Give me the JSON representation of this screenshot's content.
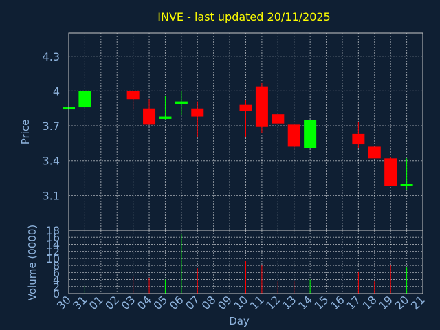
{
  "chart_data": {
    "type": "candlestick",
    "title": "INVE - last updated 20/11/2025",
    "xlabel": "Day",
    "ylabel_price": "Price",
    "ylabel_volume": "Volume (0000)",
    "x_ticks": [
      "30",
      "31",
      "01",
      "02",
      "03",
      "04",
      "05",
      "06",
      "07",
      "08",
      "09",
      "10",
      "11",
      "12",
      "13",
      "14",
      "15",
      "16",
      "17",
      "18",
      "19",
      "20",
      "21"
    ],
    "price_ticks": [
      "3.1",
      "3.4",
      "3.7",
      "4",
      "4.3"
    ],
    "price_tick_values": [
      3.1,
      3.4,
      3.7,
      4.0,
      4.3
    ],
    "price_ylim": [
      2.8,
      4.5
    ],
    "volume_ticks": [
      "0",
      "2",
      "4",
      "6",
      "8",
      "10",
      "12",
      "14",
      "16",
      "18"
    ],
    "volume_tick_values": [
      0,
      2,
      4,
      6,
      8,
      10,
      12,
      14,
      16,
      18
    ],
    "volume_ylim": [
      0,
      18
    ],
    "up_color": "#00ff00",
    "down_color": "#ff0000",
    "grid": true,
    "candles": [
      {
        "day": "30",
        "open": 3.85,
        "close": 3.86,
        "high": 3.86,
        "low": 3.85,
        "volume": 0.3
      },
      {
        "day": "31",
        "open": 3.86,
        "close": 4.0,
        "high": 4.0,
        "low": 3.86,
        "volume": 2.2
      },
      {
        "day": "03",
        "open": 4.0,
        "close": 3.93,
        "high": 4.0,
        "low": 3.84,
        "volume": 4.8
      },
      {
        "day": "04",
        "open": 3.85,
        "close": 3.71,
        "high": 3.93,
        "low": 3.71,
        "volume": 4.5
      },
      {
        "day": "05",
        "open": 3.76,
        "close": 3.78,
        "high": 3.96,
        "low": 3.75,
        "volume": 4.0
      },
      {
        "day": "06",
        "open": 3.89,
        "close": 3.91,
        "high": 4.0,
        "low": 3.79,
        "volume": 16.8
      },
      {
        "day": "07",
        "open": 3.85,
        "close": 3.78,
        "high": 3.91,
        "low": 3.6,
        "volume": 7.2
      },
      {
        "day": "10",
        "open": 3.88,
        "close": 3.83,
        "high": 3.92,
        "low": 3.6,
        "volume": 9.2
      },
      {
        "day": "11",
        "open": 4.04,
        "close": 3.69,
        "high": 4.07,
        "low": 3.64,
        "volume": 8.0
      },
      {
        "day": "12",
        "open": 3.8,
        "close": 3.72,
        "high": 3.8,
        "low": 3.72,
        "volume": 3.5
      },
      {
        "day": "13",
        "open": 3.71,
        "close": 3.52,
        "high": 3.71,
        "low": 3.5,
        "volume": 3.7
      },
      {
        "day": "14",
        "open": 3.51,
        "close": 3.75,
        "high": 3.75,
        "low": 3.51,
        "volume": 4.0
      },
      {
        "day": "17",
        "open": 3.63,
        "close": 3.54,
        "high": 3.73,
        "low": 3.51,
        "volume": 6.3
      },
      {
        "day": "18",
        "open": 3.52,
        "close": 3.42,
        "high": 3.52,
        "low": 3.42,
        "volume": 3.5
      },
      {
        "day": "19",
        "open": 3.42,
        "close": 3.18,
        "high": 3.43,
        "low": 3.18,
        "volume": 8.0
      },
      {
        "day": "20",
        "open": 3.18,
        "close": 3.2,
        "high": 3.42,
        "low": 3.15,
        "volume": 7.4
      }
    ]
  }
}
